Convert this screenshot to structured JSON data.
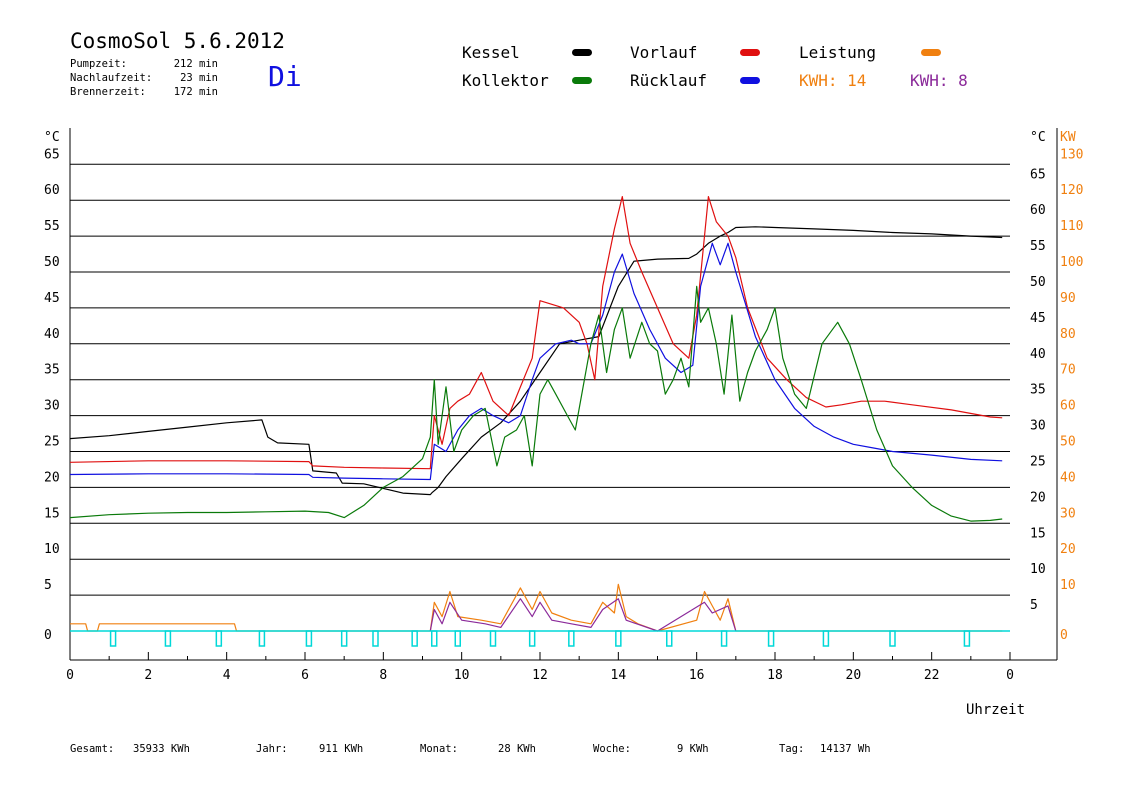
{
  "header": {
    "title": "CosmoSol 5.6.2012",
    "day": "Di",
    "stats": [
      {
        "label": "Pumpzeit:",
        "value": "212 min"
      },
      {
        "label": "Nachlaufzeit:",
        "value": "23 min"
      },
      {
        "label": "Brennerzeit:",
        "value": "172 min"
      }
    ]
  },
  "legend": {
    "kessel": "Kessel",
    "kollektor": "Kollektor",
    "vorlauf": "Vorlauf",
    "ruecklauf": "Rücklauf",
    "leistung": "Leistung",
    "kwh1": "KWH: 14",
    "kwh2": "KWH: 8"
  },
  "colors": {
    "kessel": "#000000",
    "kollektor": "#0a7a0a",
    "vorlauf": "#e01010",
    "ruecklauf": "#1010e0",
    "leistung": "#f08010",
    "kwh2": "#8b2a9a",
    "pump": "#00d8d8"
  },
  "axes": {
    "left_unit": "°C",
    "right_unit": "°C",
    "kw_unit": "KW",
    "xlabel": "Uhrzeit"
  },
  "footer": [
    {
      "label": "Gesamt:",
      "value": "35933 KWh"
    },
    {
      "label": "Jahr:",
      "value": "911 KWh"
    },
    {
      "label": "Monat:",
      "value": "28 KWh"
    },
    {
      "label": "Woche:",
      "value": "9 KWh"
    },
    {
      "label": "Tag:",
      "value": "14137 Wh"
    }
  ],
  "chart_data": {
    "type": "line",
    "title": "CosmoSol 5.6.2012",
    "xlabel": "Uhrzeit",
    "ylabel": "°C",
    "y2label": "KW",
    "xlim": [
      0,
      24
    ],
    "ylim": [
      0,
      65
    ],
    "y2lim": [
      0,
      130
    ],
    "x_ticks": [
      "0",
      "2",
      "4",
      "6",
      "8",
      "10",
      "12",
      "14",
      "16",
      "18",
      "20",
      "22",
      "0"
    ],
    "y_ticks": [
      0,
      5,
      10,
      15,
      20,
      25,
      30,
      35,
      40,
      45,
      50,
      55,
      60,
      65
    ],
    "y2_ticks": [
      0,
      10,
      20,
      30,
      40,
      50,
      60,
      70,
      80,
      90,
      100,
      110,
      120,
      130
    ],
    "grid": true,
    "legend_position": "top",
    "series": [
      {
        "name": "Kessel",
        "color": "#000000",
        "points": [
          [
            0,
            26.8
          ],
          [
            1,
            27.2
          ],
          [
            2,
            27.8
          ],
          [
            3,
            28.4
          ],
          [
            4,
            29.0
          ],
          [
            4.9,
            29.4
          ],
          [
            5.05,
            27.0
          ],
          [
            5.3,
            26.2
          ],
          [
            6.1,
            26.0
          ],
          [
            6.2,
            22.3
          ],
          [
            6.8,
            22.0
          ],
          [
            6.95,
            20.6
          ],
          [
            7.5,
            20.5
          ],
          [
            8.5,
            19.2
          ],
          [
            9.2,
            19.0
          ],
          [
            9.25,
            19.3
          ],
          [
            9.4,
            20.0
          ],
          [
            9.6,
            21.5
          ],
          [
            10.0,
            24.0
          ],
          [
            10.5,
            27.0
          ],
          [
            11.0,
            29.0
          ],
          [
            11.5,
            32.0
          ],
          [
            12.0,
            36.0
          ],
          [
            12.5,
            40.0
          ],
          [
            13.0,
            40.5
          ],
          [
            13.5,
            41.0
          ],
          [
            14.0,
            48.0
          ],
          [
            14.4,
            51.5
          ],
          [
            15.0,
            51.8
          ],
          [
            15.8,
            51.9
          ],
          [
            16.0,
            52.5
          ],
          [
            16.3,
            54.0
          ],
          [
            16.6,
            55.0
          ],
          [
            16.8,
            55.5
          ],
          [
            17.0,
            56.2
          ],
          [
            17.5,
            56.3
          ],
          [
            18.0,
            56.2
          ],
          [
            19.0,
            56.0
          ],
          [
            20.0,
            55.8
          ],
          [
            21.0,
            55.5
          ],
          [
            22.0,
            55.3
          ],
          [
            23.0,
            55.0
          ],
          [
            23.8,
            54.8
          ]
        ]
      },
      {
        "name": "Vorlauf",
        "color": "#e01010",
        "points": [
          [
            0,
            23.5
          ],
          [
            2,
            23.7
          ],
          [
            4,
            23.7
          ],
          [
            6.1,
            23.6
          ],
          [
            6.2,
            23.0
          ],
          [
            7.0,
            22.8
          ],
          [
            8.0,
            22.7
          ],
          [
            9.2,
            22.6
          ],
          [
            9.3,
            30.0
          ],
          [
            9.5,
            26.0
          ],
          [
            9.7,
            31.0
          ],
          [
            9.9,
            32.0
          ],
          [
            10.2,
            33.0
          ],
          [
            10.5,
            36.0
          ],
          [
            10.8,
            32.0
          ],
          [
            11.2,
            30.0
          ],
          [
            11.5,
            34.0
          ],
          [
            11.8,
            38.0
          ],
          [
            12.0,
            46.0
          ],
          [
            12.3,
            45.5
          ],
          [
            12.6,
            45.0
          ],
          [
            13.0,
            43.0
          ],
          [
            13.2,
            40.0
          ],
          [
            13.4,
            35.0
          ],
          [
            13.6,
            48.0
          ],
          [
            13.9,
            56.0
          ],
          [
            14.1,
            60.5
          ],
          [
            14.3,
            54.0
          ],
          [
            14.6,
            50.0
          ],
          [
            15.0,
            45.0
          ],
          [
            15.4,
            40.0
          ],
          [
            15.8,
            38.0
          ],
          [
            16.0,
            44.0
          ],
          [
            16.3,
            60.5
          ],
          [
            16.5,
            57.0
          ],
          [
            16.8,
            55.0
          ],
          [
            17.0,
            52.0
          ],
          [
            17.3,
            45.0
          ],
          [
            17.8,
            38.0
          ],
          [
            18.3,
            35.0
          ],
          [
            18.8,
            32.5
          ],
          [
            19.3,
            31.2
          ],
          [
            19.7,
            31.5
          ],
          [
            20.2,
            32.0
          ],
          [
            20.8,
            32.0
          ],
          [
            21.5,
            31.5
          ],
          [
            22.5,
            30.8
          ],
          [
            23.5,
            29.8
          ],
          [
            23.8,
            29.7
          ]
        ]
      },
      {
        "name": "Rücklauf",
        "color": "#1010e0",
        "points": [
          [
            0,
            21.8
          ],
          [
            2,
            21.9
          ],
          [
            4,
            21.9
          ],
          [
            6.1,
            21.8
          ],
          [
            6.2,
            21.4
          ],
          [
            7.0,
            21.3
          ],
          [
            8.0,
            21.2
          ],
          [
            9.2,
            21.1
          ],
          [
            9.3,
            26.0
          ],
          [
            9.6,
            25.0
          ],
          [
            9.9,
            28.0
          ],
          [
            10.2,
            30.0
          ],
          [
            10.5,
            31.0
          ],
          [
            10.8,
            30.0
          ],
          [
            11.2,
            29.0
          ],
          [
            11.5,
            30.0
          ],
          [
            11.8,
            35.0
          ],
          [
            12.0,
            38.0
          ],
          [
            12.4,
            40.0
          ],
          [
            12.8,
            40.5
          ],
          [
            13.0,
            40.0
          ],
          [
            13.3,
            40.0
          ],
          [
            13.6,
            44.0
          ],
          [
            13.9,
            50.0
          ],
          [
            14.1,
            52.5
          ],
          [
            14.4,
            47.0
          ],
          [
            14.8,
            42.0
          ],
          [
            15.2,
            38.0
          ],
          [
            15.6,
            36.0
          ],
          [
            15.9,
            37.0
          ],
          [
            16.1,
            48.0
          ],
          [
            16.4,
            54.0
          ],
          [
            16.6,
            51.0
          ],
          [
            16.8,
            54.0
          ],
          [
            17.0,
            50.0
          ],
          [
            17.5,
            41.0
          ],
          [
            18.0,
            35.0
          ],
          [
            18.5,
            31.0
          ],
          [
            19.0,
            28.5
          ],
          [
            19.5,
            27.0
          ],
          [
            20.0,
            26.0
          ],
          [
            20.5,
            25.5
          ],
          [
            21.0,
            25.0
          ],
          [
            22.0,
            24.5
          ],
          [
            23.0,
            23.9
          ],
          [
            23.8,
            23.7
          ]
        ]
      },
      {
        "name": "Kollektor",
        "color": "#0a7a0a",
        "points": [
          [
            0,
            15.8
          ],
          [
            1,
            16.2
          ],
          [
            2,
            16.4
          ],
          [
            3,
            16.5
          ],
          [
            4,
            16.5
          ],
          [
            5,
            16.6
          ],
          [
            6,
            16.7
          ],
          [
            6.6,
            16.5
          ],
          [
            7.0,
            15.8
          ],
          [
            7.5,
            17.5
          ],
          [
            8.0,
            20.0
          ],
          [
            8.5,
            21.5
          ],
          [
            9.0,
            24.0
          ],
          [
            9.2,
            27.0
          ],
          [
            9.3,
            35.0
          ],
          [
            9.4,
            26.0
          ],
          [
            9.6,
            34.0
          ],
          [
            9.8,
            25.0
          ],
          [
            10.0,
            28.0
          ],
          [
            10.3,
            30.0
          ],
          [
            10.6,
            31.0
          ],
          [
            10.9,
            23.0
          ],
          [
            11.1,
            27.0
          ],
          [
            11.4,
            28.0
          ],
          [
            11.6,
            30.0
          ],
          [
            11.8,
            23.0
          ],
          [
            12.0,
            33.0
          ],
          [
            12.2,
            35.0
          ],
          [
            12.4,
            33.0
          ],
          [
            12.7,
            30.0
          ],
          [
            12.9,
            28.0
          ],
          [
            13.1,
            34.0
          ],
          [
            13.3,
            40.0
          ],
          [
            13.5,
            44.0
          ],
          [
            13.7,
            36.0
          ],
          [
            13.9,
            42.0
          ],
          [
            14.1,
            45.0
          ],
          [
            14.3,
            38.0
          ],
          [
            14.6,
            43.0
          ],
          [
            14.8,
            40.0
          ],
          [
            15.0,
            39.0
          ],
          [
            15.2,
            33.0
          ],
          [
            15.4,
            35.0
          ],
          [
            15.6,
            38.0
          ],
          [
            15.8,
            34.0
          ],
          [
            16.0,
            48.0
          ],
          [
            16.1,
            43.0
          ],
          [
            16.3,
            45.0
          ],
          [
            16.5,
            40.0
          ],
          [
            16.7,
            33.0
          ],
          [
            16.9,
            44.0
          ],
          [
            17.1,
            32.0
          ],
          [
            17.3,
            36.0
          ],
          [
            17.5,
            39.0
          ],
          [
            17.8,
            42.0
          ],
          [
            18.0,
            45.0
          ],
          [
            18.2,
            38.0
          ],
          [
            18.5,
            33.0
          ],
          [
            18.8,
            31.0
          ],
          [
            19.2,
            40.0
          ],
          [
            19.6,
            43.0
          ],
          [
            19.9,
            40.0
          ],
          [
            20.2,
            35.0
          ],
          [
            20.6,
            28.0
          ],
          [
            21.0,
            23.0
          ],
          [
            21.5,
            20.0
          ],
          [
            22.0,
            17.5
          ],
          [
            22.5,
            16.0
          ],
          [
            23.0,
            15.3
          ],
          [
            23.5,
            15.4
          ],
          [
            23.8,
            15.6
          ]
        ]
      },
      {
        "name": "Leistung",
        "color": "#f08010",
        "unit": "KW",
        "points": [
          [
            0,
            2
          ],
          [
            0.4,
            2
          ],
          [
            0.45,
            0
          ],
          [
            0.7,
            0
          ],
          [
            0.75,
            2
          ],
          [
            4.2,
            2
          ],
          [
            4.25,
            0
          ],
          [
            9.2,
            0
          ],
          [
            9.3,
            8
          ],
          [
            9.5,
            4
          ],
          [
            9.7,
            11
          ],
          [
            9.9,
            4
          ],
          [
            10.5,
            3
          ],
          [
            11.0,
            2
          ],
          [
            11.5,
            12
          ],
          [
            11.8,
            6
          ],
          [
            12.0,
            11
          ],
          [
            12.3,
            5
          ],
          [
            12.8,
            3
          ],
          [
            13.3,
            2
          ],
          [
            13.6,
            8
          ],
          [
            13.9,
            5
          ],
          [
            14.0,
            13
          ],
          [
            14.2,
            4
          ],
          [
            14.5,
            2
          ],
          [
            15.0,
            0
          ],
          [
            16.0,
            3
          ],
          [
            16.2,
            11
          ],
          [
            16.4,
            7
          ],
          [
            16.6,
            3
          ],
          [
            16.8,
            9
          ],
          [
            17.0,
            0
          ],
          [
            23.8,
            0
          ]
        ]
      },
      {
        "name": "KWH: 8",
        "color": "#8b2a9a",
        "unit": "KW",
        "points": [
          [
            9.2,
            0
          ],
          [
            9.3,
            6
          ],
          [
            9.5,
            2
          ],
          [
            9.7,
            8
          ],
          [
            10.0,
            3
          ],
          [
            10.6,
            2
          ],
          [
            11.0,
            1
          ],
          [
            11.5,
            9
          ],
          [
            11.8,
            4
          ],
          [
            12.0,
            8
          ],
          [
            12.3,
            3
          ],
          [
            12.8,
            2
          ],
          [
            13.3,
            1
          ],
          [
            13.6,
            6
          ],
          [
            14.0,
            9
          ],
          [
            14.2,
            3
          ],
          [
            15.0,
            0
          ],
          [
            16.2,
            8
          ],
          [
            16.4,
            5
          ],
          [
            16.8,
            7
          ],
          [
            17.0,
            0
          ]
        ]
      }
    ],
    "pump_markers_hours": [
      1.1,
      2.5,
      3.8,
      4.9,
      6.1,
      7.0,
      7.8,
      8.8,
      9.3,
      9.9,
      10.8,
      11.8,
      12.8,
      14.0,
      15.3,
      16.7,
      17.9,
      19.3,
      21.0,
      22.9
    ]
  }
}
